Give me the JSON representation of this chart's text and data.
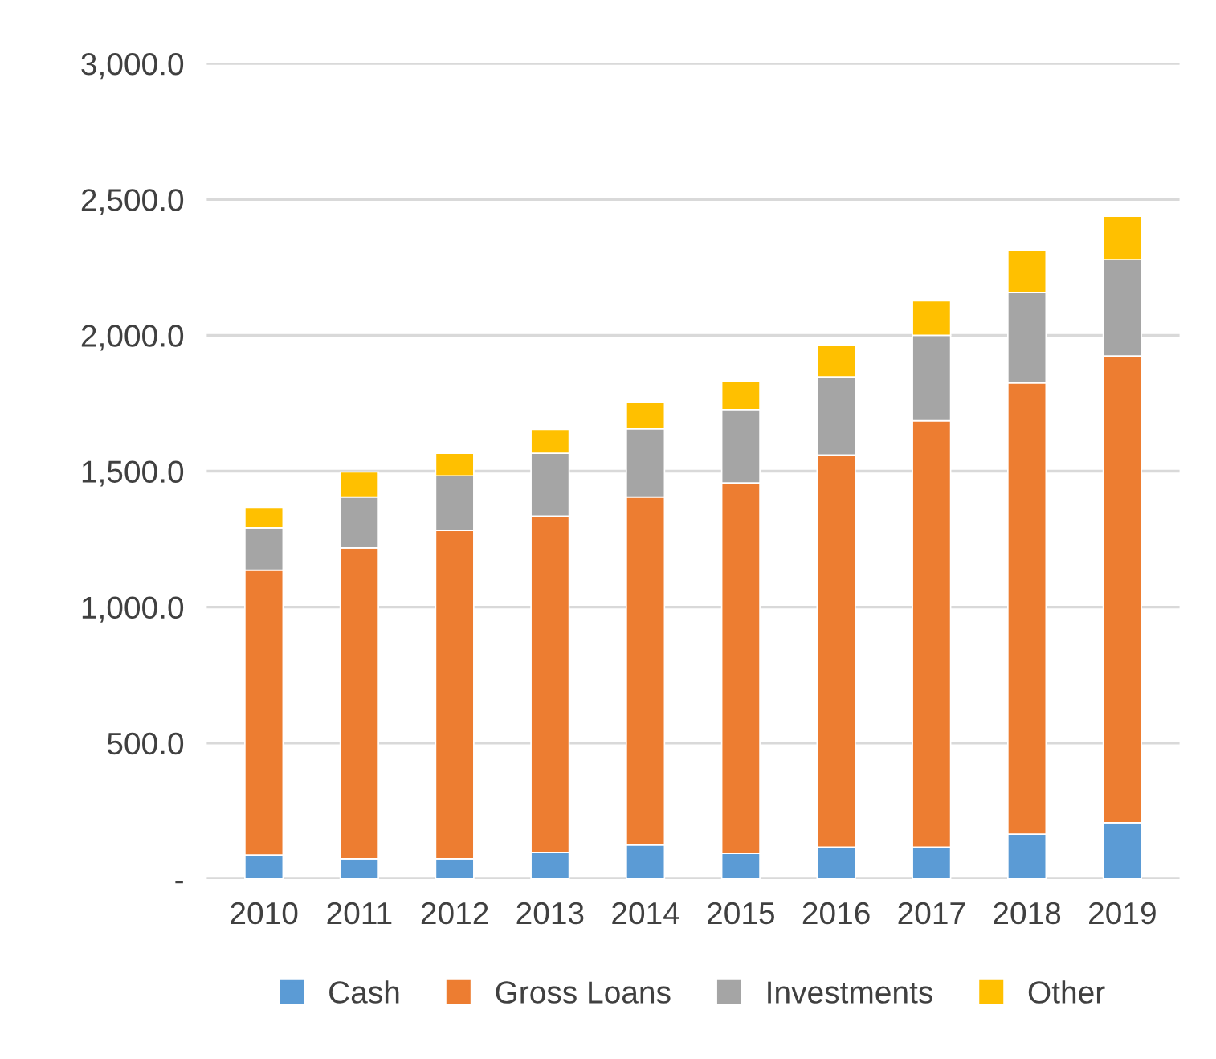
{
  "chart_data": {
    "type": "bar",
    "stacked": true,
    "categories": [
      "2010",
      "2011",
      "2012",
      "2013",
      "2014",
      "2015",
      "2016",
      "2017",
      "2018",
      "2019"
    ],
    "series": [
      {
        "name": "Cash",
        "color": "#5b9bd5",
        "values": [
          88,
          74,
          74,
          98,
          125,
          94,
          117,
          117,
          165,
          207
        ]
      },
      {
        "name": "Gross Loans",
        "color": "#ed7d31",
        "values": [
          1048,
          1144,
          1208,
          1237,
          1280,
          1363,
          1443,
          1569,
          1660,
          1717
        ]
      },
      {
        "name": "Investments",
        "color": "#a5a5a5",
        "values": [
          156,
          187,
          201,
          231,
          251,
          270,
          287,
          314,
          332,
          355
        ]
      },
      {
        "name": "Other",
        "color": "#ffc000",
        "values": [
          75,
          92,
          83,
          88,
          99,
          102,
          117,
          127,
          157,
          159
        ]
      }
    ],
    "ylim": [
      0,
      3000
    ],
    "yticks": [
      {
        "value": 0,
        "label": "-"
      },
      {
        "value": 500,
        "label": "500.0"
      },
      {
        "value": 1000,
        "label": "1,000.0"
      },
      {
        "value": 1500,
        "label": "1,500.0"
      },
      {
        "value": 2000,
        "label": "2,000.0"
      },
      {
        "value": 2500,
        "label": "2,500.0"
      },
      {
        "value": 3000,
        "label": "3,000.0"
      }
    ],
    "grid": "y",
    "legend": "bottom"
  }
}
